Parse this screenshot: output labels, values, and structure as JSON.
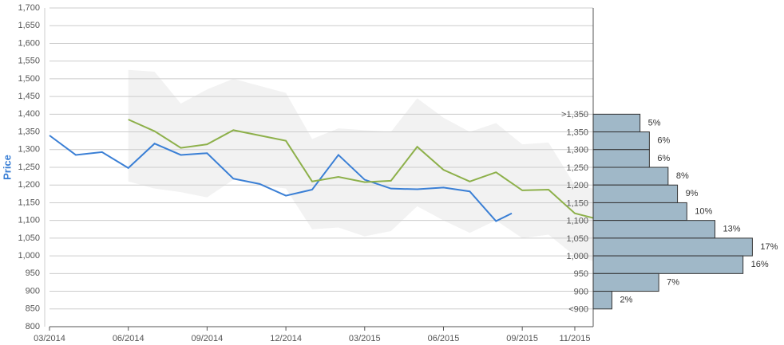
{
  "chart_data": [
    {
      "type": "line",
      "ylabel": "Price",
      "xlim": [
        0,
        20.7
      ],
      "xticks": [
        {
          "value": 0,
          "label": "03/2014"
        },
        {
          "value": 3,
          "label": "06/2014"
        },
        {
          "value": 6,
          "label": "09/2014"
        },
        {
          "value": 9,
          "label": "12/2014"
        },
        {
          "value": 12,
          "label": "03/2015"
        },
        {
          "value": 15,
          "label": "06/2015"
        },
        {
          "value": 18,
          "label": "09/2015"
        },
        {
          "value": 20,
          "label": "11/2015"
        }
      ],
      "ylim": [
        800,
        1700
      ],
      "yticks": [
        800,
        850,
        900,
        950,
        {
          "value": 1000,
          "label": "1,000"
        },
        {
          "value": 1050,
          "label": "1,050"
        },
        {
          "value": 1100,
          "label": "1,100"
        },
        {
          "value": 1150,
          "label": "1,150"
        },
        {
          "value": 1200,
          "label": "1,200"
        },
        {
          "value": 1250,
          "label": "1,250"
        },
        {
          "value": 1300,
          "label": "1,300"
        },
        {
          "value": 1350,
          "label": "1,350"
        },
        {
          "value": 1400,
          "label": "1,400"
        },
        {
          "value": 1450,
          "label": "1,450"
        },
        {
          "value": 1500,
          "label": "1,500"
        },
        {
          "value": 1550,
          "label": "1,550"
        },
        {
          "value": 1600,
          "label": "1,600"
        },
        {
          "value": 1650,
          "label": "1,650"
        },
        {
          "value": 1700,
          "label": "1,700"
        }
      ],
      "grid": true,
      "band": {
        "color": "#f2f2f2",
        "x": [
          3,
          4,
          5,
          6,
          7,
          8,
          9,
          10,
          11,
          12,
          13,
          14,
          15,
          16,
          17,
          18,
          19,
          20,
          20.7
        ],
        "upper": [
          1525,
          1520,
          1430,
          1470,
          1500,
          1480,
          1460,
          1330,
          1360,
          1355,
          1350,
          1445,
          1390,
          1350,
          1375,
          1315,
          1320,
          1200,
          1190
        ],
        "lower": [
          1210,
          1190,
          1180,
          1165,
          1215,
          1200,
          1190,
          1075,
          1080,
          1055,
          1070,
          1140,
          1100,
          1065,
          1100,
          1050,
          1060,
          1000,
          985
        ]
      },
      "series": [
        {
          "color": "#3a7fd5",
          "x": [
            0,
            1,
            2,
            3,
            4,
            5,
            6,
            7,
            8,
            9,
            10,
            11,
            12,
            13,
            14,
            15,
            16,
            17,
            17.6
          ],
          "values": [
            1340,
            1285,
            1293,
            1248,
            1317,
            1285,
            1290,
            1218,
            1203,
            1170,
            1187,
            1285,
            1215,
            1190,
            1188,
            1193,
            1182,
            1098,
            1120
          ]
        },
        {
          "color": "#8db04a",
          "x": [
            3,
            4,
            5,
            6,
            7,
            8,
            9,
            10,
            11,
            12,
            13,
            14,
            15,
            16,
            17,
            18,
            19,
            20,
            20.7
          ],
          "values": [
            1385,
            1352,
            1305,
            1315,
            1355,
            1340,
            1325,
            1210,
            1223,
            1208,
            1212,
            1308,
            1243,
            1210,
            1236,
            1185,
            1187,
            1120,
            1107
          ]
        }
      ]
    },
    {
      "type": "histogram",
      "orientation": "horizontal",
      "color": "#a0b8c8",
      "bins": [
        1400,
        1350,
        1300,
        1250,
        1200,
        1150,
        1100,
        1050,
        1000,
        950,
        900,
        850
      ],
      "bin_labels": [
        ">1,350",
        "1,350",
        "1,300",
        "1,250",
        "1,200",
        "1,150",
        "1,100",
        "1,050",
        "1,000",
        "950",
        "900",
        "<900"
      ],
      "values": [
        5,
        6,
        6,
        8,
        9,
        10,
        13,
        17,
        16,
        7,
        2
      ],
      "value_labels": [
        "5%",
        "6%",
        "6%",
        "8%",
        "9%",
        "10%",
        "13%",
        "17%",
        "16%",
        "7%",
        "2%"
      ],
      "xlim": [
        0,
        18.5
      ]
    }
  ]
}
